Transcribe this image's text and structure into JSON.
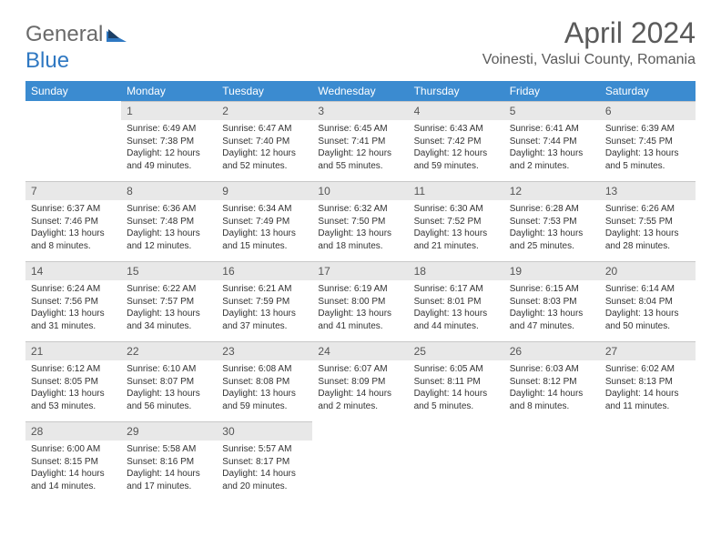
{
  "brand": {
    "part1": "General",
    "part2": "Blue"
  },
  "title": "April 2024",
  "location": "Voinesti, Vaslui County, Romania",
  "dow": [
    "Sunday",
    "Monday",
    "Tuesday",
    "Wednesday",
    "Thursday",
    "Friday",
    "Saturday"
  ],
  "colors": {
    "header_bg": "#3b8bd0",
    "header_fg": "#ffffff",
    "daynum_bg": "#e8e8e8",
    "logo_gray": "#6a6a6a",
    "logo_blue": "#2f78c2"
  },
  "first_weekday": 1,
  "days": [
    {
      "n": 1,
      "sr": "6:49 AM",
      "ss": "7:38 PM",
      "dl": "12 hours and 49 minutes."
    },
    {
      "n": 2,
      "sr": "6:47 AM",
      "ss": "7:40 PM",
      "dl": "12 hours and 52 minutes."
    },
    {
      "n": 3,
      "sr": "6:45 AM",
      "ss": "7:41 PM",
      "dl": "12 hours and 55 minutes."
    },
    {
      "n": 4,
      "sr": "6:43 AM",
      "ss": "7:42 PM",
      "dl": "12 hours and 59 minutes."
    },
    {
      "n": 5,
      "sr": "6:41 AM",
      "ss": "7:44 PM",
      "dl": "13 hours and 2 minutes."
    },
    {
      "n": 6,
      "sr": "6:39 AM",
      "ss": "7:45 PM",
      "dl": "13 hours and 5 minutes."
    },
    {
      "n": 7,
      "sr": "6:37 AM",
      "ss": "7:46 PM",
      "dl": "13 hours and 8 minutes."
    },
    {
      "n": 8,
      "sr": "6:36 AM",
      "ss": "7:48 PM",
      "dl": "13 hours and 12 minutes."
    },
    {
      "n": 9,
      "sr": "6:34 AM",
      "ss": "7:49 PM",
      "dl": "13 hours and 15 minutes."
    },
    {
      "n": 10,
      "sr": "6:32 AM",
      "ss": "7:50 PM",
      "dl": "13 hours and 18 minutes."
    },
    {
      "n": 11,
      "sr": "6:30 AM",
      "ss": "7:52 PM",
      "dl": "13 hours and 21 minutes."
    },
    {
      "n": 12,
      "sr": "6:28 AM",
      "ss": "7:53 PM",
      "dl": "13 hours and 25 minutes."
    },
    {
      "n": 13,
      "sr": "6:26 AM",
      "ss": "7:55 PM",
      "dl": "13 hours and 28 minutes."
    },
    {
      "n": 14,
      "sr": "6:24 AM",
      "ss": "7:56 PM",
      "dl": "13 hours and 31 minutes."
    },
    {
      "n": 15,
      "sr": "6:22 AM",
      "ss": "7:57 PM",
      "dl": "13 hours and 34 minutes."
    },
    {
      "n": 16,
      "sr": "6:21 AM",
      "ss": "7:59 PM",
      "dl": "13 hours and 37 minutes."
    },
    {
      "n": 17,
      "sr": "6:19 AM",
      "ss": "8:00 PM",
      "dl": "13 hours and 41 minutes."
    },
    {
      "n": 18,
      "sr": "6:17 AM",
      "ss": "8:01 PM",
      "dl": "13 hours and 44 minutes."
    },
    {
      "n": 19,
      "sr": "6:15 AM",
      "ss": "8:03 PM",
      "dl": "13 hours and 47 minutes."
    },
    {
      "n": 20,
      "sr": "6:14 AM",
      "ss": "8:04 PM",
      "dl": "13 hours and 50 minutes."
    },
    {
      "n": 21,
      "sr": "6:12 AM",
      "ss": "8:05 PM",
      "dl": "13 hours and 53 minutes."
    },
    {
      "n": 22,
      "sr": "6:10 AM",
      "ss": "8:07 PM",
      "dl": "13 hours and 56 minutes."
    },
    {
      "n": 23,
      "sr": "6:08 AM",
      "ss": "8:08 PM",
      "dl": "13 hours and 59 minutes."
    },
    {
      "n": 24,
      "sr": "6:07 AM",
      "ss": "8:09 PM",
      "dl": "14 hours and 2 minutes."
    },
    {
      "n": 25,
      "sr": "6:05 AM",
      "ss": "8:11 PM",
      "dl": "14 hours and 5 minutes."
    },
    {
      "n": 26,
      "sr": "6:03 AM",
      "ss": "8:12 PM",
      "dl": "14 hours and 8 minutes."
    },
    {
      "n": 27,
      "sr": "6:02 AM",
      "ss": "8:13 PM",
      "dl": "14 hours and 11 minutes."
    },
    {
      "n": 28,
      "sr": "6:00 AM",
      "ss": "8:15 PM",
      "dl": "14 hours and 14 minutes."
    },
    {
      "n": 29,
      "sr": "5:58 AM",
      "ss": "8:16 PM",
      "dl": "14 hours and 17 minutes."
    },
    {
      "n": 30,
      "sr": "5:57 AM",
      "ss": "8:17 PM",
      "dl": "14 hours and 20 minutes."
    }
  ],
  "labels": {
    "sunrise": "Sunrise:",
    "sunset": "Sunset:",
    "daylight": "Daylight:"
  }
}
